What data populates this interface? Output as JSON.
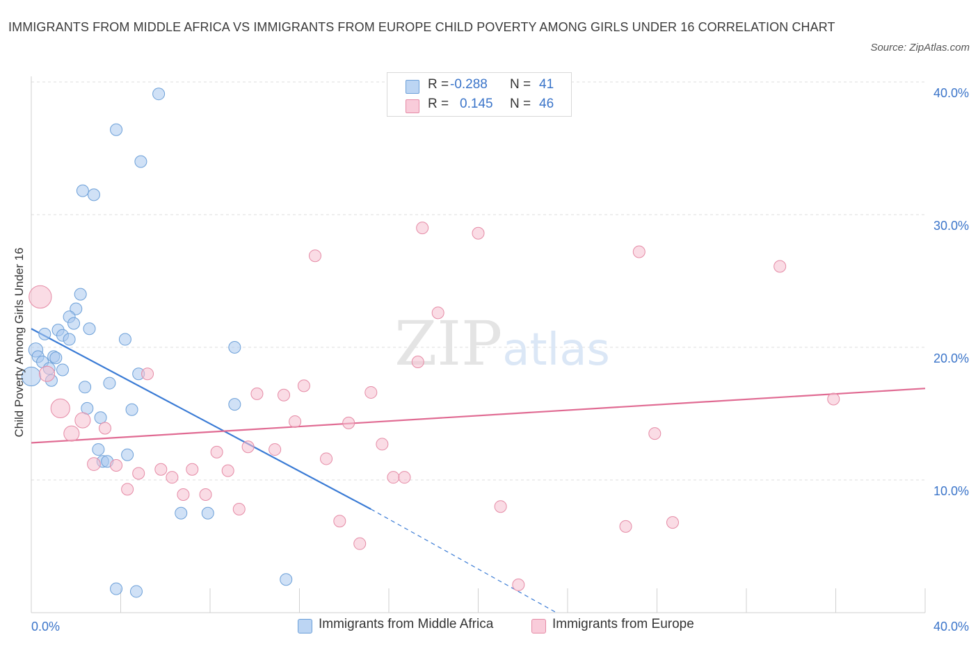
{
  "chart_data": {
    "type": "scatter",
    "title": "IMMIGRANTS FROM MIDDLE AFRICA VS IMMIGRANTS FROM EUROPE CHILD POVERTY AMONG GIRLS UNDER 16 CORRELATION CHART",
    "source": "Source: ZipAtlas.com",
    "watermark": "ZIPatlas",
    "ylabel": "Child Poverty Among Girls Under 16",
    "xlim": [
      0,
      40
    ],
    "ylim": [
      0,
      40
    ],
    "x_tick_labels": [
      {
        "value": 0,
        "label": "0.0%"
      },
      {
        "value": 40,
        "label": "40.0%"
      }
    ],
    "y_tick_labels": [
      {
        "value": 10,
        "label": "10.0%"
      },
      {
        "value": 20,
        "label": "20.0%"
      },
      {
        "value": 30,
        "label": "30.0%"
      },
      {
        "value": 40,
        "label": "40.0%"
      }
    ],
    "legend_position": "bottom-center",
    "grid": "horizontal dashed",
    "stats": [
      {
        "r_label": "R =",
        "r_value": "-0.288",
        "n_label": "N =",
        "n_value": "41"
      },
      {
        "r_label": "R =",
        "r_value": "0.145",
        "n_label": "N =",
        "n_value": "46"
      }
    ],
    "series": [
      {
        "name": "Immigrants from Middle Africa",
        "color": "#a9c8ef",
        "edge_color": "#6b9fd8",
        "line_color": "#3a7bd5",
        "trend": {
          "x0": 0,
          "y0": 21.4,
          "x1": 15.2,
          "y1": 7.8,
          "dash_to_x": 23.5,
          "dash_to_y": 0.0
        },
        "points": [
          {
            "x": 5.7,
            "y": 39.1,
            "s": 1
          },
          {
            "x": 3.8,
            "y": 36.4,
            "s": 1
          },
          {
            "x": 4.9,
            "y": 34.0,
            "s": 1
          },
          {
            "x": 2.3,
            "y": 31.8,
            "s": 1
          },
          {
            "x": 2.8,
            "y": 31.5,
            "s": 1
          },
          {
            "x": 2.2,
            "y": 24.0,
            "s": 1
          },
          {
            "x": 2.0,
            "y": 22.9,
            "s": 1
          },
          {
            "x": 1.7,
            "y": 22.3,
            "s": 1
          },
          {
            "x": 1.9,
            "y": 21.8,
            "s": 1
          },
          {
            "x": 2.6,
            "y": 21.4,
            "s": 1
          },
          {
            "x": 1.2,
            "y": 21.3,
            "s": 1
          },
          {
            "x": 0.6,
            "y": 21.0,
            "s": 1
          },
          {
            "x": 1.4,
            "y": 20.9,
            "s": 1
          },
          {
            "x": 1.7,
            "y": 20.6,
            "s": 1
          },
          {
            "x": 4.2,
            "y": 20.6,
            "s": 1
          },
          {
            "x": 0.2,
            "y": 19.8,
            "s": 1.2
          },
          {
            "x": 0.3,
            "y": 19.3,
            "s": 1
          },
          {
            "x": 1.0,
            "y": 19.3,
            "s": 1
          },
          {
            "x": 1.1,
            "y": 19.2,
            "s": 1
          },
          {
            "x": 0.5,
            "y": 18.9,
            "s": 1
          },
          {
            "x": 0.8,
            "y": 18.4,
            "s": 1
          },
          {
            "x": 1.4,
            "y": 18.3,
            "s": 1
          },
          {
            "x": 4.8,
            "y": 18.0,
            "s": 1
          },
          {
            "x": 0.0,
            "y": 17.8,
            "s": 1.6
          },
          {
            "x": 0.9,
            "y": 17.5,
            "s": 1
          },
          {
            "x": 3.5,
            "y": 17.3,
            "s": 1
          },
          {
            "x": 2.4,
            "y": 17.0,
            "s": 1
          },
          {
            "x": 9.1,
            "y": 20.0,
            "s": 1
          },
          {
            "x": 9.1,
            "y": 15.7,
            "s": 1
          },
          {
            "x": 2.5,
            "y": 15.4,
            "s": 1
          },
          {
            "x": 4.5,
            "y": 15.3,
            "s": 1
          },
          {
            "x": 3.1,
            "y": 14.7,
            "s": 1
          },
          {
            "x": 3.0,
            "y": 12.3,
            "s": 1
          },
          {
            "x": 4.3,
            "y": 11.9,
            "s": 1
          },
          {
            "x": 3.2,
            "y": 11.4,
            "s": 1
          },
          {
            "x": 3.4,
            "y": 11.4,
            "s": 1
          },
          {
            "x": 6.7,
            "y": 7.5,
            "s": 1
          },
          {
            "x": 7.9,
            "y": 7.5,
            "s": 1
          },
          {
            "x": 11.4,
            "y": 2.5,
            "s": 1
          },
          {
            "x": 3.8,
            "y": 1.8,
            "s": 1
          },
          {
            "x": 4.7,
            "y": 1.6,
            "s": 1
          }
        ]
      },
      {
        "name": "Immigrants from Europe",
        "color": "#f6bfcf",
        "edge_color": "#e58aa5",
        "line_color": "#e06a92",
        "trend": {
          "x0": 0,
          "y0": 12.8,
          "x1": 40,
          "y1": 16.9
        },
        "points": [
          {
            "x": 0.4,
            "y": 23.8,
            "s": 1.9
          },
          {
            "x": 0.7,
            "y": 18.0,
            "s": 1.3
          },
          {
            "x": 1.3,
            "y": 15.4,
            "s": 1.6
          },
          {
            "x": 2.3,
            "y": 14.5,
            "s": 1.3
          },
          {
            "x": 1.8,
            "y": 13.5,
            "s": 1.3
          },
          {
            "x": 3.3,
            "y": 13.9,
            "s": 1
          },
          {
            "x": 2.8,
            "y": 11.2,
            "s": 1.1
          },
          {
            "x": 3.8,
            "y": 11.1,
            "s": 1
          },
          {
            "x": 5.2,
            "y": 18.0,
            "s": 1
          },
          {
            "x": 4.8,
            "y": 10.5,
            "s": 1
          },
          {
            "x": 4.3,
            "y": 9.3,
            "s": 1
          },
          {
            "x": 5.8,
            "y": 10.8,
            "s": 1
          },
          {
            "x": 6.3,
            "y": 10.2,
            "s": 1
          },
          {
            "x": 7.2,
            "y": 10.8,
            "s": 1
          },
          {
            "x": 6.8,
            "y": 8.9,
            "s": 1
          },
          {
            "x": 7.8,
            "y": 8.9,
            "s": 1
          },
          {
            "x": 8.3,
            "y": 12.1,
            "s": 1
          },
          {
            "x": 8.8,
            "y": 10.7,
            "s": 1
          },
          {
            "x": 9.3,
            "y": 7.8,
            "s": 1
          },
          {
            "x": 10.1,
            "y": 16.5,
            "s": 1
          },
          {
            "x": 9.7,
            "y": 12.5,
            "s": 1
          },
          {
            "x": 10.9,
            "y": 12.3,
            "s": 1
          },
          {
            "x": 11.3,
            "y": 16.4,
            "s": 1
          },
          {
            "x": 11.8,
            "y": 14.4,
            "s": 1
          },
          {
            "x": 12.2,
            "y": 17.1,
            "s": 1
          },
          {
            "x": 12.7,
            "y": 26.9,
            "s": 1
          },
          {
            "x": 13.2,
            "y": 11.6,
            "s": 1
          },
          {
            "x": 13.8,
            "y": 6.9,
            "s": 1
          },
          {
            "x": 14.2,
            "y": 14.3,
            "s": 1
          },
          {
            "x": 14.7,
            "y": 5.2,
            "s": 1
          },
          {
            "x": 15.2,
            "y": 16.6,
            "s": 1
          },
          {
            "x": 15.7,
            "y": 12.7,
            "s": 1
          },
          {
            "x": 16.2,
            "y": 10.2,
            "s": 1
          },
          {
            "x": 16.7,
            "y": 10.2,
            "s": 1
          },
          {
            "x": 17.3,
            "y": 18.9,
            "s": 1
          },
          {
            "x": 17.5,
            "y": 29.0,
            "s": 1
          },
          {
            "x": 18.2,
            "y": 22.6,
            "s": 1
          },
          {
            "x": 20.0,
            "y": 28.6,
            "s": 1
          },
          {
            "x": 21.0,
            "y": 8.0,
            "s": 1
          },
          {
            "x": 21.8,
            "y": 2.1,
            "s": 1
          },
          {
            "x": 26.6,
            "y": 6.5,
            "s": 1
          },
          {
            "x": 27.2,
            "y": 27.2,
            "s": 1
          },
          {
            "x": 27.9,
            "y": 13.5,
            "s": 1
          },
          {
            "x": 28.7,
            "y": 6.8,
            "s": 1
          },
          {
            "x": 33.5,
            "y": 26.1,
            "s": 1
          },
          {
            "x": 35.9,
            "y": 16.1,
            "s": 1
          }
        ]
      }
    ]
  }
}
